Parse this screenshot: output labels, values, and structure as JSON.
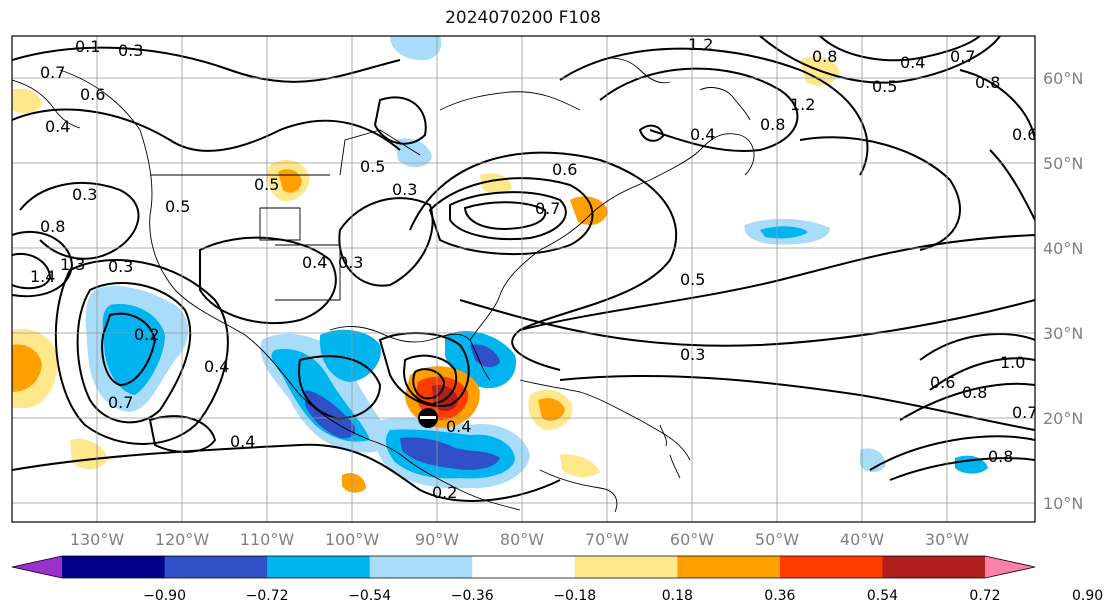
{
  "title": "2024070200 F108",
  "lon_ticks": [
    "130°W",
    "120°W",
    "110°W",
    "100°W",
    "90°W",
    "80°W",
    "70°W",
    "60°W",
    "50°W",
    "40°W",
    "30°W"
  ],
  "lat_ticks": [
    "60°N",
    "50°N",
    "40°N",
    "30°N",
    "20°N",
    "10°N"
  ],
  "contour_labels": [
    "0.1",
    "0.3",
    "0.7",
    "0.6",
    "0.4",
    "0.3",
    "0.5",
    "0.8",
    "1.4",
    "1.3",
    "0.3",
    "0.2",
    "0.7",
    "0.4",
    "0.4",
    "0.5",
    "0.4",
    "0.3",
    "0.5",
    "0.7",
    "0.6",
    "0.5",
    "0.3",
    "0.2",
    "0.4",
    "0.3",
    "1.2",
    "0.4",
    "0.8",
    "0.4",
    "0.5",
    "0.7",
    "0.8",
    "0.6",
    "1.2",
    "0.8",
    "1.0",
    "0.6",
    "0.8",
    "0.7",
    "0.8"
  ],
  "colorbar": {
    "ticks": [
      "−0.90",
      "−0.72",
      "−0.54",
      "−0.36",
      "−0.18",
      "0.18",
      "0.36",
      "0.54",
      "0.72",
      "0.90"
    ],
    "colors": [
      "#9b30d0",
      "#00008b",
      "#3050c8",
      "#00b4f0",
      "#a8dcf8",
      "#ffffff",
      "#ffe88c",
      "#ffa000",
      "#ff3c00",
      "#b01e1e",
      "#ff80a8"
    ]
  }
}
